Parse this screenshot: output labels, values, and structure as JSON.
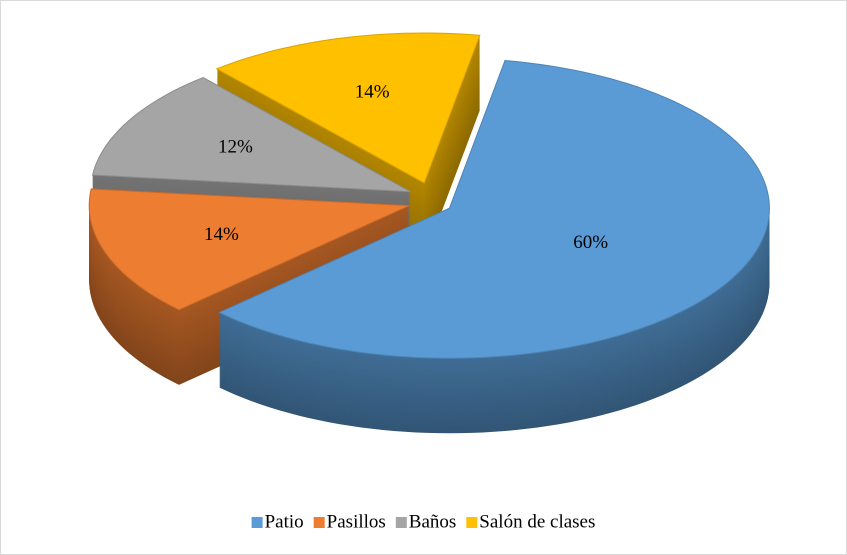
{
  "chart_data": {
    "type": "pie",
    "categories": [
      "Patio",
      "Pasillos",
      "Baños",
      "Salón de clases"
    ],
    "values": [
      60,
      14,
      12,
      14
    ],
    "value_labels": [
      "60%",
      "14%",
      "12%",
      "14%"
    ],
    "colors": [
      "#5b9bd5",
      "#ed7d31",
      "#a5a5a5",
      "#ffc000"
    ],
    "legend": "bottom"
  }
}
